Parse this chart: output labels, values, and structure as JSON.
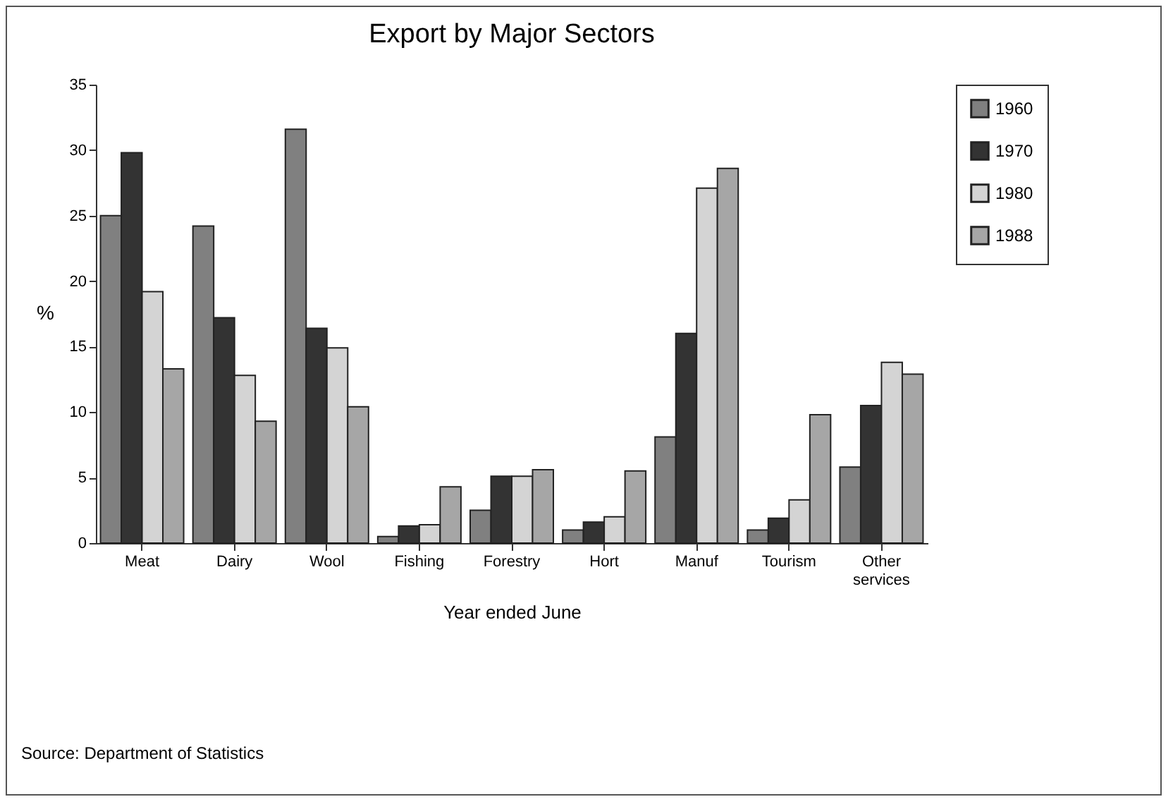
{
  "chart_data": {
    "type": "bar",
    "title": "Export by Major Sectors",
    "xlabel": "Year ended June",
    "ylabel": "%",
    "categories": [
      "Meat",
      "Dairy",
      "Wool",
      "Fishing",
      "Forestry",
      "Hort",
      "Manuf",
      "Tourism",
      "Other services"
    ],
    "series": [
      {
        "name": "1960",
        "color": "#808080",
        "values": [
          25,
          24.2,
          31.6,
          0.5,
          2.5,
          1.0,
          8.1,
          1.0,
          5.8
        ]
      },
      {
        "name": "1970",
        "color": "#333333",
        "values": [
          29.8,
          17.2,
          16.4,
          1.3,
          5.1,
          1.6,
          16.0,
          1.9,
          10.5
        ]
      },
      {
        "name": "1980",
        "color": "#d4d4d4",
        "values": [
          19.2,
          12.8,
          14.9,
          1.4,
          5.1,
          2.0,
          27.1,
          3.3,
          13.8
        ]
      },
      {
        "name": "1988",
        "color": "#a6a6a6",
        "values": [
          13.3,
          9.3,
          10.4,
          4.3,
          5.6,
          5.5,
          28.6,
          9.8,
          12.9
        ]
      }
    ],
    "ylim": [
      0,
      35
    ],
    "yticks": [
      0,
      5,
      10,
      15,
      20,
      25,
      30,
      35
    ],
    "grid": false,
    "legend": "right",
    "annotations": [
      "Source: Department of Statistics"
    ]
  }
}
